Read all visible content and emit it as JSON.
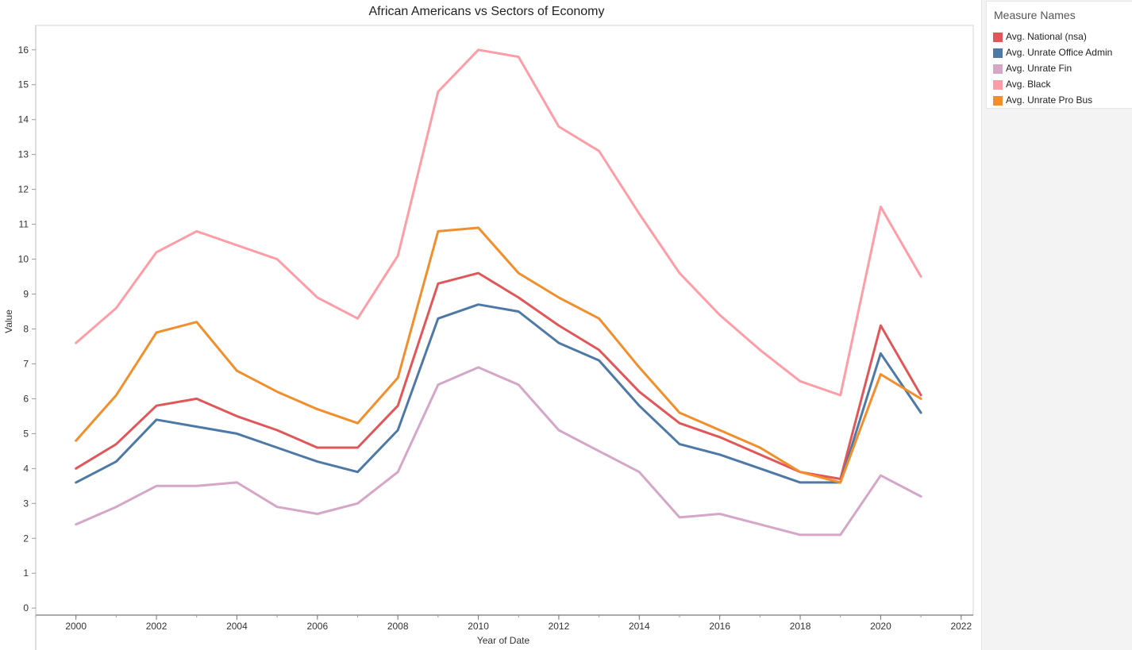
{
  "chart_data": {
    "type": "line",
    "title": "African Americans vs Sectors of Economy",
    "xlabel": "Year of Date",
    "ylabel": "Value",
    "xlim": [
      1999,
      2022.3
    ],
    "ylim": [
      -0.2,
      16.7
    ],
    "xticks": [
      2000,
      2002,
      2004,
      2006,
      2008,
      2010,
      2012,
      2014,
      2016,
      2018,
      2020,
      2022
    ],
    "yticks": [
      0,
      1,
      2,
      3,
      4,
      5,
      6,
      7,
      8,
      9,
      10,
      11,
      12,
      13,
      14,
      15,
      16
    ],
    "x": [
      2000,
      2001,
      2002,
      2003,
      2004,
      2005,
      2006,
      2007,
      2008,
      2009,
      2010,
      2011,
      2012,
      2013,
      2014,
      2015,
      2016,
      2017,
      2018,
      2019,
      2020,
      2021
    ],
    "grid": false,
    "legend_title": "Measure Names",
    "legend_position": "right",
    "series": [
      {
        "name": "Avg. National (nsa)",
        "color": "#e15759",
        "values": [
          4.0,
          4.7,
          5.8,
          6.0,
          5.5,
          5.1,
          4.6,
          4.6,
          5.8,
          9.3,
          9.6,
          8.9,
          8.1,
          7.4,
          6.2,
          5.3,
          4.9,
          4.4,
          3.9,
          3.7,
          8.1,
          6.1
        ]
      },
      {
        "name": "Avg. Unrate Office Admin",
        "color": "#4e79a7",
        "values": [
          3.6,
          4.2,
          5.4,
          5.2,
          5.0,
          4.6,
          4.2,
          3.9,
          5.1,
          8.3,
          8.7,
          8.5,
          7.6,
          7.1,
          5.8,
          4.7,
          4.4,
          4.0,
          3.6,
          3.6,
          7.3,
          5.6
        ]
      },
      {
        "name": "Avg. Unrate Fin",
        "color": "#d4a6c8",
        "values": [
          2.4,
          2.9,
          3.5,
          3.5,
          3.6,
          2.9,
          2.7,
          3.0,
          3.9,
          6.4,
          6.9,
          6.4,
          5.1,
          4.5,
          3.9,
          2.6,
          2.7,
          2.4,
          2.1,
          2.1,
          3.8,
          3.2
        ]
      },
      {
        "name": "Avg. Black",
        "color": "#ff9da7",
        "values": [
          7.6,
          8.6,
          10.2,
          10.8,
          10.4,
          10.0,
          8.9,
          8.3,
          10.1,
          14.8,
          16.0,
          15.8,
          13.8,
          13.1,
          11.3,
          9.6,
          8.4,
          7.4,
          6.5,
          6.1,
          11.5,
          9.5
        ]
      },
      {
        "name": "Avg. Unrate Pro Bus",
        "color": "#f28e2b",
        "values": [
          4.8,
          6.1,
          7.9,
          8.2,
          6.8,
          6.2,
          5.7,
          5.3,
          6.6,
          10.8,
          10.9,
          9.6,
          8.9,
          8.3,
          6.9,
          5.6,
          5.1,
          4.6,
          3.9,
          3.6,
          6.7,
          6.0
        ]
      }
    ]
  }
}
